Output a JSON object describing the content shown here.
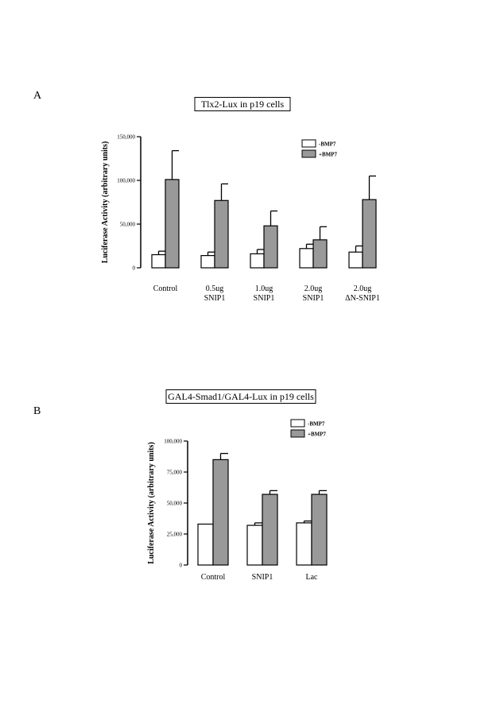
{
  "colors": {
    "minus": "#ffffff",
    "plus": "#999999",
    "ink": "#000000"
  },
  "chart_data": [
    {
      "panel": "A",
      "type": "bar",
      "title": "Tlx2-Lux in p19 cells",
      "xlabel": "",
      "ylabel": "Luciferase Activity (arbitrary units)",
      "ylim": [
        0,
        150000
      ],
      "yticks": [
        0,
        50000,
        100000,
        150000
      ],
      "ytick_labels": [
        "0",
        "50,000",
        "100,000",
        "150,000"
      ],
      "categories": [
        "Control",
        "0.5ug\nSNIP1",
        "1.0ug\nSNIP1",
        "2.0ug\nSNIP1",
        "2.0ug\nΔN-SNIP1"
      ],
      "series": [
        {
          "name": "-BMP7",
          "values": [
            15000,
            14000,
            16000,
            22000,
            18000
          ],
          "errors": [
            4000,
            4000,
            5000,
            5000,
            7000
          ]
        },
        {
          "name": "+BMP7",
          "values": [
            101000,
            77000,
            48000,
            32000,
            78000
          ],
          "errors": [
            33000,
            19000,
            17000,
            15000,
            27000
          ]
        }
      ],
      "legend": "top-right",
      "grid": false
    },
    {
      "panel": "B",
      "type": "bar",
      "title": "GAL4-Smad1/GAL4-Lux in p19 cells",
      "xlabel": "",
      "ylabel": "Luciferase Activity (arbitrary units)",
      "ylim": [
        0,
        100000
      ],
      "yticks": [
        0,
        25000,
        50000,
        75000,
        100000
      ],
      "ytick_labels": [
        "0",
        "25,000",
        "50,000",
        "75,000",
        "100,000"
      ],
      "categories": [
        "Control",
        "SNIP1",
        "Lac"
      ],
      "series": [
        {
          "name": "-BMP7",
          "values": [
            33000,
            32000,
            34000
          ],
          "errors": [
            0,
            2000,
            1500
          ]
        },
        {
          "name": "+BMP7",
          "values": [
            85000,
            57000,
            57000
          ],
          "errors": [
            5000,
            3000,
            3000
          ]
        }
      ],
      "legend": "top-right",
      "grid": false
    }
  ]
}
